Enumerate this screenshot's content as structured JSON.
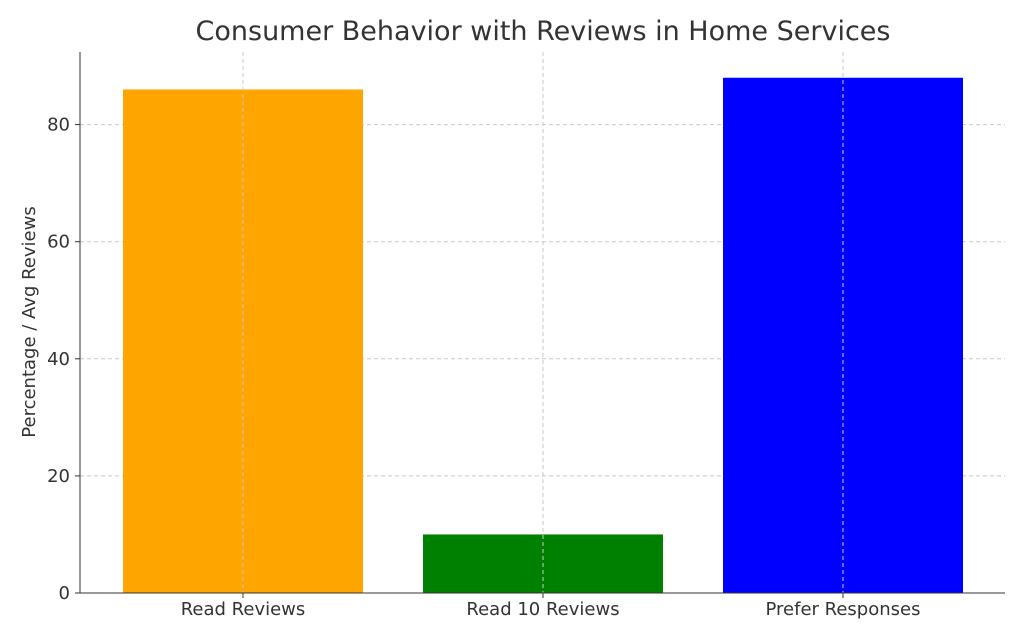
{
  "chart_data": {
    "type": "bar",
    "title": "Consumer Behavior with Reviews in Home Services",
    "y_label": "Percentage / Avg Reviews",
    "categories": [
      "Read Reviews",
      "Read 10 Reviews",
      "Prefer Responses"
    ],
    "values": [
      86,
      10,
      88
    ],
    "colors": [
      "#ffa500",
      "#008000",
      "#0000ff"
    ],
    "ylim": [
      0,
      92.4
    ],
    "yticks": [
      0,
      20,
      40,
      60,
      80
    ],
    "grid": true
  }
}
